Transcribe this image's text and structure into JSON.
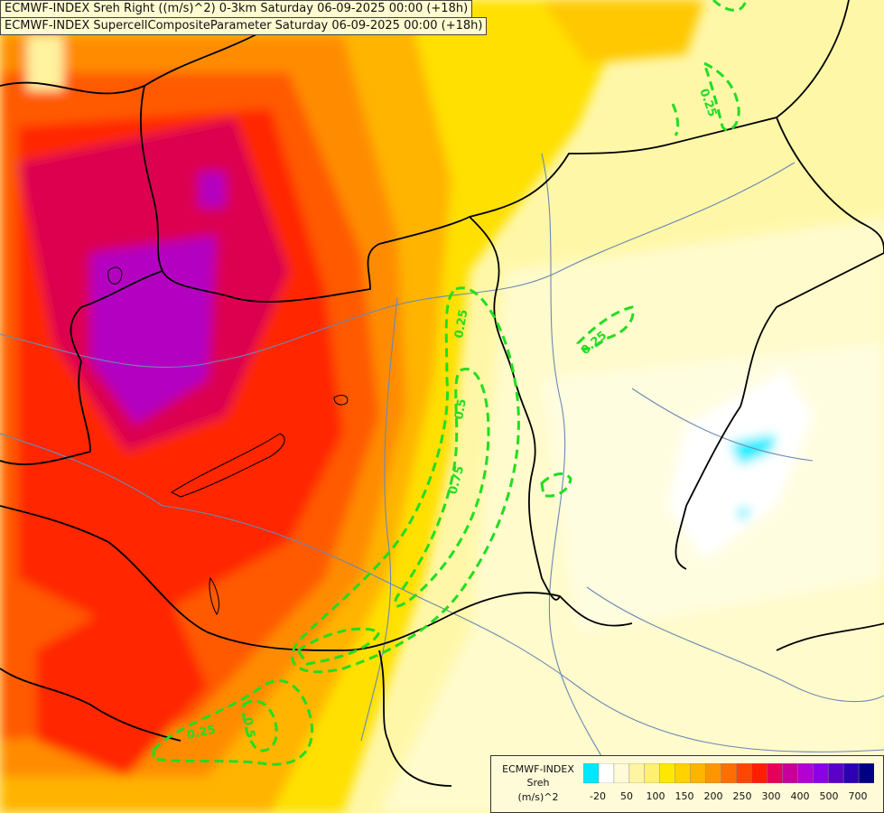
{
  "titles": {
    "line1": "ECMWF-INDEX Sreh Right ((m/s)^2) 0-3km Saturday 06-09-2025 00:00 (+18h)",
    "line2": "ECMWF-INDEX SupercellCompositeParameter Saturday 06-09-2025 00:00 (+18h)"
  },
  "contour_labels": [
    "0.25",
    "0.5",
    "0.75",
    "0.25",
    "0.25",
    "0.5",
    "0.25"
  ],
  "legend": {
    "line1": "ECMWF-INDEX",
    "line2": "Sreh",
    "line3": "(m/s)^2",
    "ticks": [
      "-20",
      "50",
      "100",
      "150",
      "200",
      "250",
      "300",
      "400",
      "500",
      "700"
    ],
    "colors": [
      "#00e8ff",
      "#ffffff",
      "#fffbd8",
      "#fff5a0",
      "#fff070",
      "#ffe800",
      "#ffd200",
      "#ffb400",
      "#ff9600",
      "#ff6e00",
      "#ff4600",
      "#ff1e00",
      "#e6005a",
      "#c8009b",
      "#b400d2",
      "#8c00e6",
      "#5a00c8",
      "#2d00b4",
      "#000082"
    ]
  },
  "colors": {
    "contour": "#22dd22",
    "border": "#000000",
    "river": "#6080b0"
  }
}
